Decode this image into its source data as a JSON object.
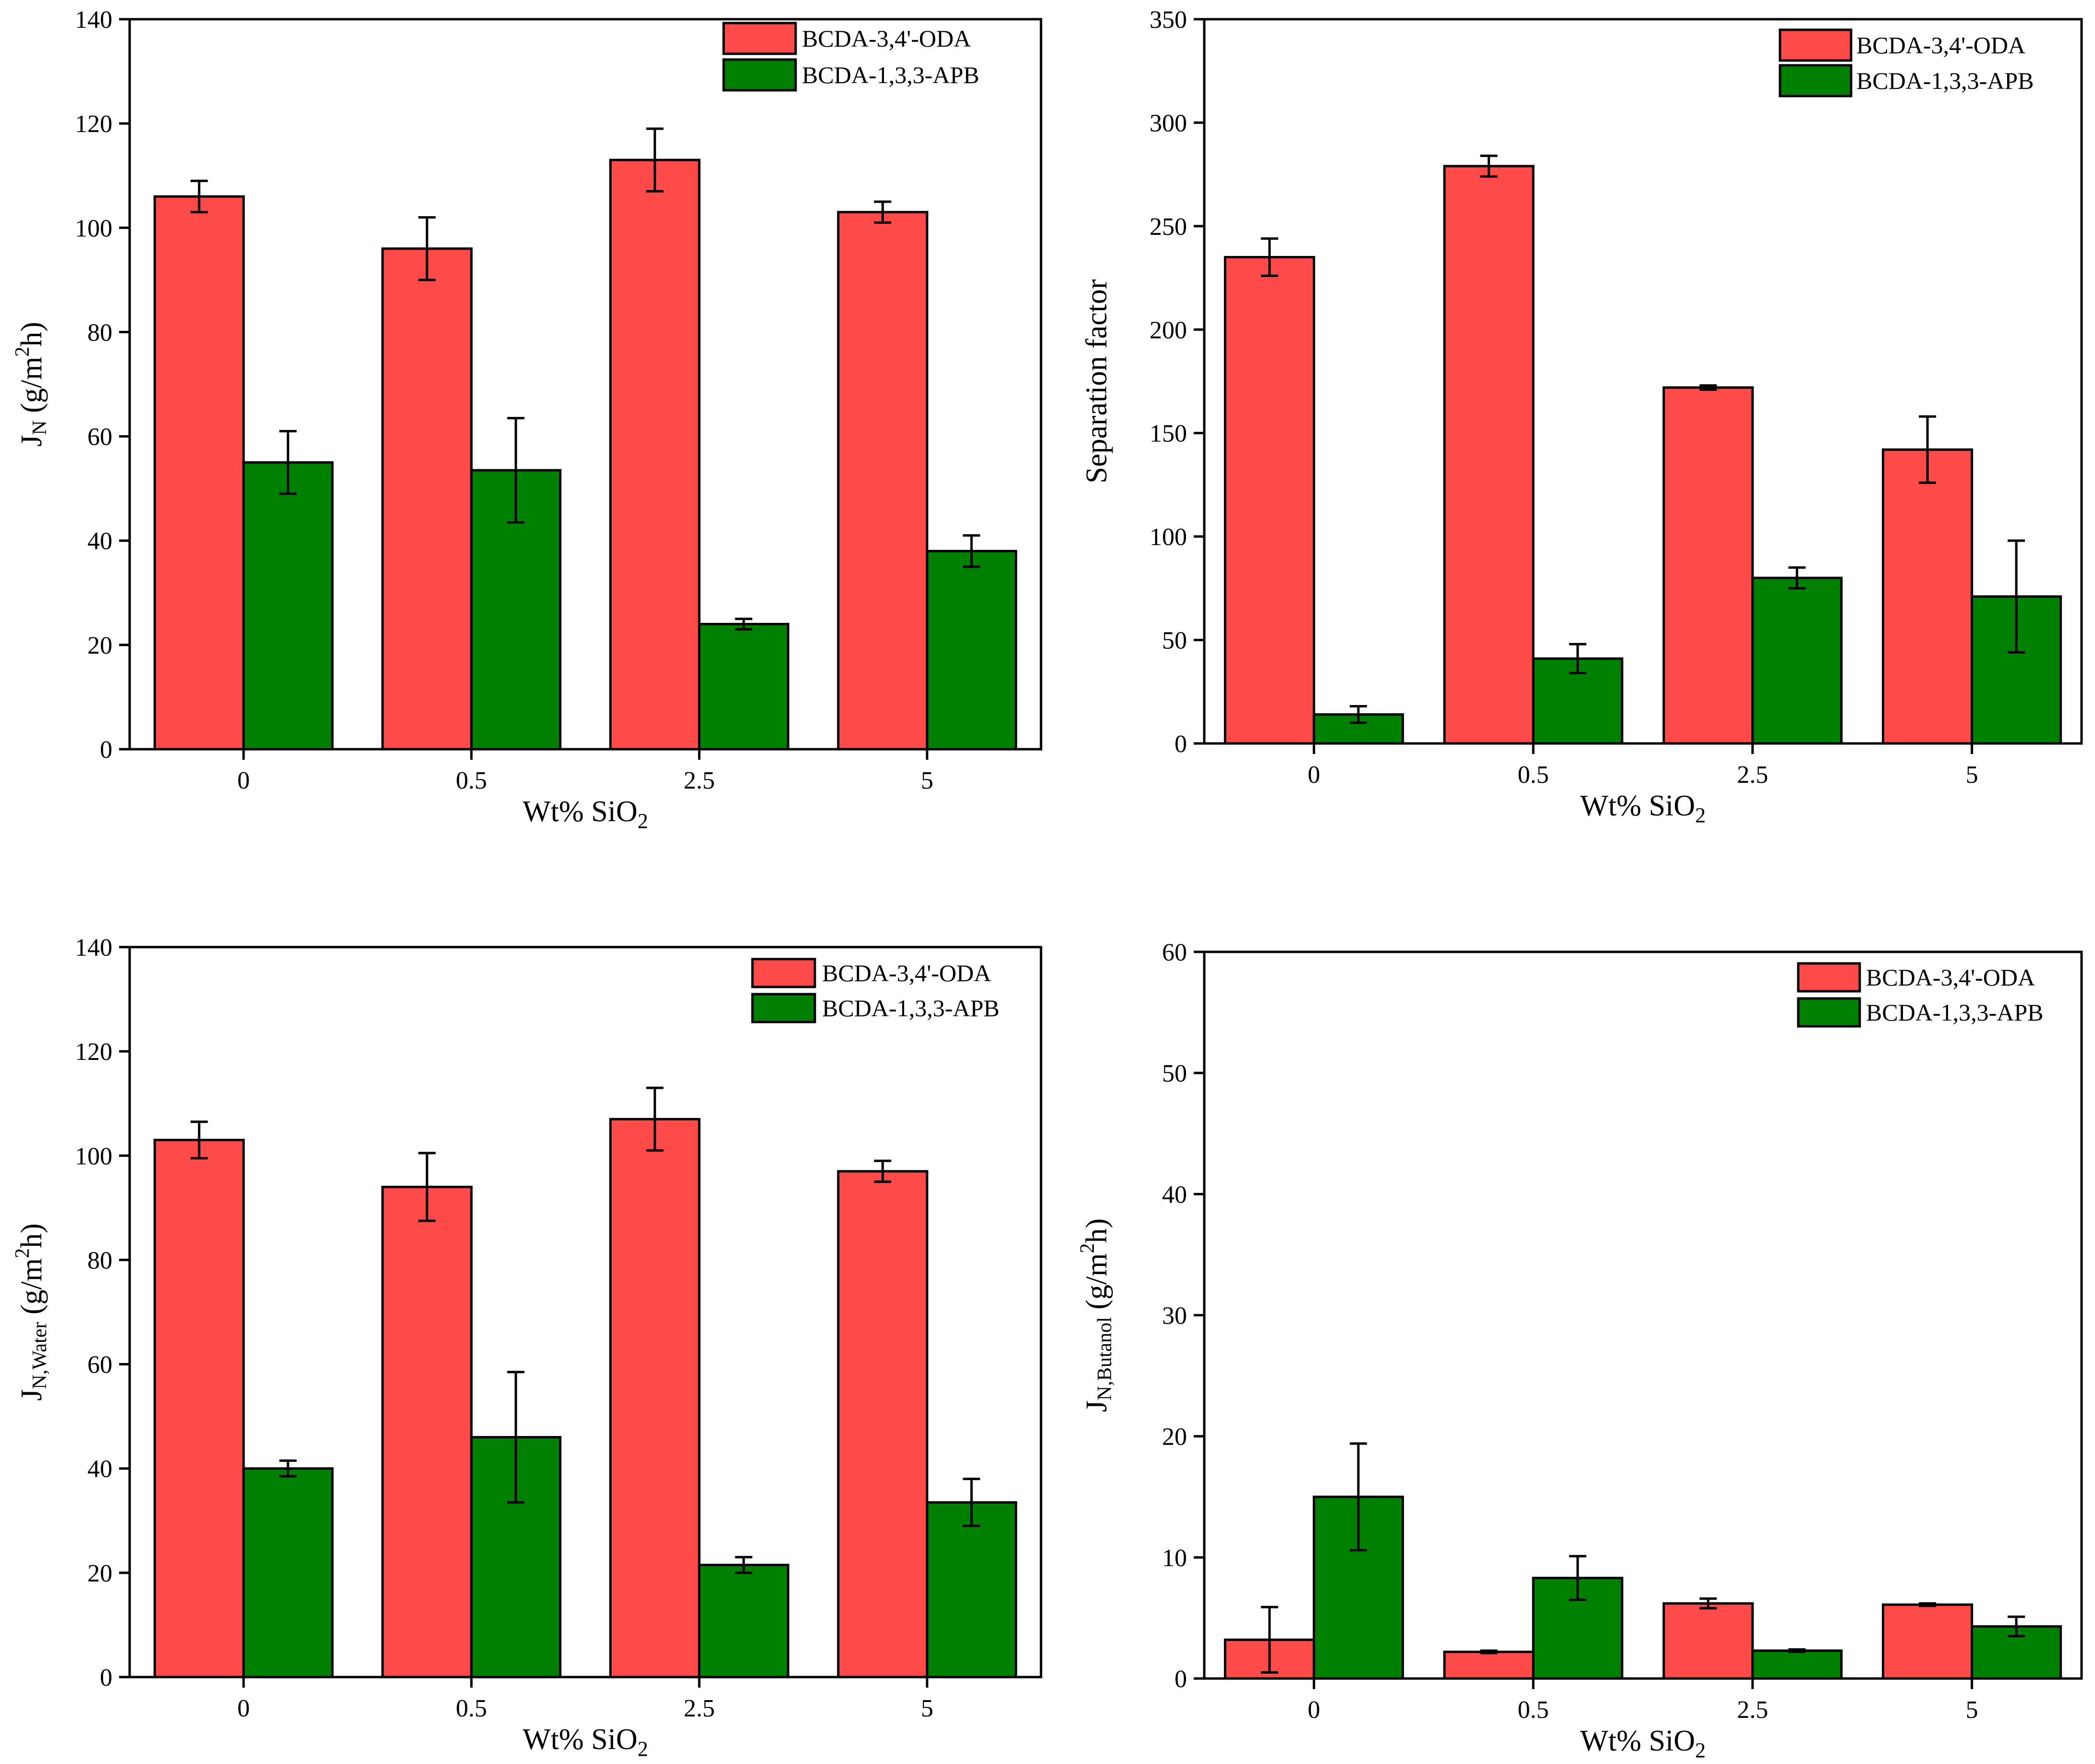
{
  "figure": {
    "colors": {
      "series_1": "#ff4a4a",
      "series_2": "#008000",
      "axis": "#000000"
    }
  },
  "chart_data": [
    {
      "type": "bar",
      "position": "top-left",
      "categories": [
        "0",
        "0.5",
        "2.5",
        "5"
      ],
      "xlabel": "Wt% SiO",
      "xlabel_sub": "2",
      "ylabel": {
        "main": "J",
        "sub": "N",
        "tail_before_sup": " (g/m",
        "sup": "2",
        "tail": "h)"
      },
      "ylim": [
        0,
        140
      ],
      "yticks": [
        0,
        20,
        40,
        60,
        80,
        100,
        120,
        140
      ],
      "legend_position": "top-right",
      "series": [
        {
          "name": "BCDA-3,4'-ODA",
          "values": [
            106,
            96,
            113,
            103
          ],
          "errors": [
            3,
            6,
            6,
            2
          ]
        },
        {
          "name": "BCDA-1,3,3-APB",
          "values": [
            55,
            53.5,
            24,
            38
          ],
          "errors": [
            6,
            10,
            1,
            3
          ]
        }
      ]
    },
    {
      "type": "bar",
      "position": "top-right",
      "categories": [
        "0",
        "0.5",
        "2.5",
        "5"
      ],
      "xlabel": "Wt% SiO",
      "xlabel_sub": "2",
      "ylabel": {
        "main": "Separation factor",
        "sub": "",
        "tail_before_sup": "",
        "sup": "",
        "tail": ""
      },
      "ylim": [
        0,
        350
      ],
      "yticks": [
        0,
        50,
        100,
        150,
        200,
        250,
        300,
        350
      ],
      "legend_position": "top-right",
      "series": [
        {
          "name": "BCDA-3,4'-ODA",
          "values": [
            235,
            279,
            172,
            142
          ],
          "errors": [
            9,
            5,
            1,
            16
          ]
        },
        {
          "name": "BCDA-1,3,3-APB",
          "values": [
            14,
            41,
            80,
            71
          ],
          "errors": [
            4,
            7,
            5,
            27
          ]
        }
      ]
    },
    {
      "type": "bar",
      "position": "bottom-left",
      "categories": [
        "0",
        "0.5",
        "2.5",
        "5"
      ],
      "xlabel": "Wt% SiO",
      "xlabel_sub": "2",
      "ylabel": {
        "main": "J",
        "sub": "N,Water",
        "tail_before_sup": " (g/m",
        "sup": "2",
        "tail": "h)"
      },
      "ylim": [
        0,
        140
      ],
      "yticks": [
        0,
        20,
        40,
        60,
        80,
        100,
        120,
        140
      ],
      "legend_position": "top-right",
      "series": [
        {
          "name": "BCDA-3,4'-ODA",
          "values": [
            103,
            94,
            107,
            97
          ],
          "errors": [
            3.5,
            6.5,
            6,
            2
          ]
        },
        {
          "name": "BCDA-1,3,3-APB",
          "values": [
            40,
            46,
            21.5,
            33.5
          ],
          "errors": [
            1.5,
            12.5,
            1.5,
            4.5
          ]
        }
      ]
    },
    {
      "type": "bar",
      "position": "bottom-right",
      "categories": [
        "0",
        "0.5",
        "2.5",
        "5"
      ],
      "xlabel": "Wt% SiO",
      "xlabel_sub": "2",
      "ylabel": {
        "main": "J",
        "sub": "N,Butanol",
        "tail_before_sup": " (g/m",
        "sup": "2",
        "tail": "h)"
      },
      "ylim": [
        0,
        60
      ],
      "yticks": [
        0,
        10,
        20,
        30,
        40,
        50,
        60
      ],
      "legend_position": "top-right",
      "series": [
        {
          "name": "BCDA-3,4'-ODA",
          "values": [
            3.2,
            2.2,
            6.2,
            6.1
          ],
          "errors": [
            2.7,
            0.1,
            0.4,
            0.1
          ]
        },
        {
          "name": "BCDA-1,3,3-APB",
          "values": [
            15,
            8.3,
            2.3,
            4.3
          ],
          "errors": [
            4.4,
            1.8,
            0.1,
            0.8
          ]
        }
      ]
    }
  ]
}
